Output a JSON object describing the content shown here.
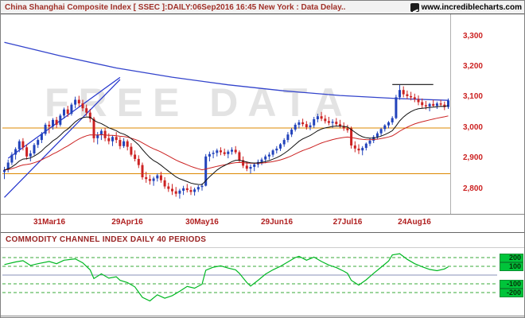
{
  "header": {
    "title": "China Shanghai Composite Index [ SSEC ]:DAILY:06Sep2016 16:45 New York : Data Delay..",
    "site": "www.incrediblecharts.com"
  },
  "chart_data": {
    "type": "candlestick",
    "title": "China Shanghai Composite Index [ SSEC ] DAILY",
    "watermark": "FREE DATA",
    "price_panel": {
      "ylim": [
        2718,
        3372
      ],
      "y_ticks": [
        3300,
        3200,
        3100,
        3000,
        2900,
        2800
      ],
      "x_ticks": [
        {
          "label": "31Mar16",
          "index": 12
        },
        {
          "label": "29Apr16",
          "index": 33
        },
        {
          "label": "30May16",
          "index": 53
        },
        {
          "label": "29Jun16",
          "index": 73
        },
        {
          "label": "27Jul16",
          "index": 92
        },
        {
          "label": "24Aug16",
          "index": 110
        }
      ],
      "support_resistance": [
        {
          "value": 3000,
          "color": "#dd8800"
        },
        {
          "value": 2850,
          "color": "#dd8800"
        }
      ],
      "trendlines": [
        {
          "from": [
            1,
            2900
          ],
          "to": [
            31,
            3165
          ],
          "color": "#2233cc"
        },
        {
          "from": [
            0,
            2772
          ],
          "to": [
            31,
            3158
          ],
          "color": "#2233cc"
        },
        {
          "from": [
            104,
            3142
          ],
          "to": [
            115,
            3142
          ],
          "color": "#111111"
        }
      ],
      "long_ma_points": [
        [
          0,
          3280
        ],
        [
          15,
          3236
        ],
        [
          30,
          3196
        ],
        [
          45,
          3166
        ],
        [
          60,
          3141
        ],
        [
          75,
          3121
        ],
        [
          90,
          3106
        ],
        [
          105,
          3096
        ],
        [
          119,
          3090
        ]
      ],
      "ma_fast_period": 13,
      "ma_slow_period": 34,
      "colors": {
        "up": "#2243bb",
        "down": "#cc2222",
        "ma_fast": "#111111",
        "ma_slow": "#cc2222",
        "long_ma": "#3344cc"
      }
    },
    "candles": [
      [
        2855,
        2872,
        2832,
        2862
      ],
      [
        2862,
        2896,
        2854,
        2886
      ],
      [
        2886,
        2920,
        2878,
        2912
      ],
      [
        2912,
        2936,
        2896,
        2930
      ],
      [
        2930,
        2962,
        2920,
        2956
      ],
      [
        2956,
        2966,
        2926,
        2936
      ],
      [
        2936,
        2946,
        2896,
        2906
      ],
      [
        2906,
        2926,
        2890,
        2916
      ],
      [
        2916,
        2950,
        2910,
        2944
      ],
      [
        2944,
        2966,
        2934,
        2960
      ],
      [
        2960,
        2986,
        2950,
        2980
      ],
      [
        2980,
        3016,
        2974,
        3010
      ],
      [
        3010,
        3022,
        2982,
        3004
      ],
      [
        3004,
        3032,
        2994,
        3026
      ],
      [
        3026,
        3036,
        3000,
        3010
      ],
      [
        3010,
        3046,
        3004,
        3040
      ],
      [
        3040,
        3066,
        3030,
        3060
      ],
      [
        3060,
        3072,
        3036,
        3046
      ],
      [
        3046,
        3082,
        3040,
        3076
      ],
      [
        3076,
        3102,
        3064,
        3092
      ],
      [
        3092,
        3105,
        3070,
        3080
      ],
      [
        3080,
        3092,
        3054,
        3064
      ],
      [
        3064,
        3076,
        3040,
        3050
      ],
      [
        3050,
        3062,
        3018,
        3030
      ],
      [
        3030,
        3036,
        2952,
        2966
      ],
      [
        2966,
        2986,
        2946,
        2976
      ],
      [
        2976,
        2996,
        2960,
        2990
      ],
      [
        2990,
        3000,
        2956,
        2966
      ],
      [
        2966,
        2982,
        2946,
        2956
      ],
      [
        2956,
        2976,
        2940,
        2970
      ],
      [
        2970,
        2986,
        2950,
        2960
      ],
      [
        2960,
        2970,
        2930,
        2940
      ],
      [
        2940,
        2966,
        2934,
        2956
      ],
      [
        2956,
        2962,
        2926,
        2938
      ],
      [
        2938,
        2950,
        2906,
        2912
      ],
      [
        2912,
        2926,
        2890,
        2898
      ],
      [
        2898,
        2910,
        2868,
        2878
      ],
      [
        2878,
        2886,
        2830,
        2838
      ],
      [
        2838,
        2856,
        2820,
        2832
      ],
      [
        2832,
        2846,
        2814,
        2826
      ],
      [
        2826,
        2840,
        2810,
        2834
      ],
      [
        2834,
        2850,
        2824,
        2844
      ],
      [
        2844,
        2856,
        2820,
        2828
      ],
      [
        2828,
        2838,
        2800,
        2808
      ],
      [
        2808,
        2820,
        2790,
        2800
      ],
      [
        2800,
        2816,
        2780,
        2792
      ],
      [
        2792,
        2806,
        2774,
        2784
      ],
      [
        2784,
        2800,
        2768,
        2794
      ],
      [
        2794,
        2810,
        2780,
        2802
      ],
      [
        2802,
        2816,
        2788,
        2796
      ],
      [
        2796,
        2808,
        2780,
        2790
      ],
      [
        2790,
        2804,
        2778,
        2798
      ],
      [
        2798,
        2812,
        2790,
        2806
      ],
      [
        2806,
        2818,
        2794,
        2810
      ],
      [
        2810,
        2914,
        2808,
        2906
      ],
      [
        2906,
        2922,
        2890,
        2914
      ],
      [
        2914,
        2926,
        2900,
        2918
      ],
      [
        2918,
        2932,
        2906,
        2926
      ],
      [
        2926,
        2936,
        2910,
        2920
      ],
      [
        2920,
        2932,
        2908,
        2914
      ],
      [
        2914,
        2928,
        2900,
        2922
      ],
      [
        2922,
        2936,
        2912,
        2928
      ],
      [
        2928,
        2940,
        2914,
        2920
      ],
      [
        2920,
        2926,
        2888,
        2894
      ],
      [
        2894,
        2906,
        2868,
        2876
      ],
      [
        2876,
        2890,
        2858,
        2866
      ],
      [
        2866,
        2880,
        2850,
        2872
      ],
      [
        2872,
        2886,
        2858,
        2880
      ],
      [
        2880,
        2896,
        2870,
        2888
      ],
      [
        2888,
        2902,
        2878,
        2896
      ],
      [
        2896,
        2912,
        2884,
        2906
      ],
      [
        2906,
        2920,
        2896,
        2912
      ],
      [
        2912,
        2930,
        2904,
        2926
      ],
      [
        2926,
        2940,
        2916,
        2932
      ],
      [
        2932,
        2950,
        2924,
        2946
      ],
      [
        2946,
        2966,
        2938,
        2960
      ],
      [
        2960,
        2986,
        2952,
        2978
      ],
      [
        2978,
        3000,
        2970,
        2994
      ],
      [
        2994,
        3016,
        2988,
        3010
      ],
      [
        3010,
        3026,
        2998,
        3018
      ],
      [
        3018,
        3030,
        3004,
        3012
      ],
      [
        3012,
        3022,
        2994,
        3002
      ],
      [
        3002,
        3018,
        2992,
        3008
      ],
      [
        3008,
        3036,
        3000,
        3028
      ],
      [
        3028,
        3046,
        3018,
        3038
      ],
      [
        3038,
        3052,
        3022,
        3030
      ],
      [
        3030,
        3042,
        3014,
        3022
      ],
      [
        3022,
        3036,
        3008,
        3016
      ],
      [
        3016,
        3028,
        3000,
        3020
      ],
      [
        3020,
        3032,
        3004,
        3012
      ],
      [
        3012,
        3026,
        2998,
        3006
      ],
      [
        3006,
        3018,
        2990,
        2998
      ],
      [
        2998,
        3010,
        2984,
        2992
      ],
      [
        2998,
        3004,
        2932,
        2942
      ],
      [
        2942,
        2956,
        2920,
        2932
      ],
      [
        2932,
        2946,
        2914,
        2926
      ],
      [
        2926,
        2940,
        2910,
        2934
      ],
      [
        2934,
        2952,
        2926,
        2948
      ],
      [
        2948,
        2966,
        2940,
        2958
      ],
      [
        2958,
        2976,
        2950,
        2970
      ],
      [
        2970,
        2988,
        2962,
        2982
      ],
      [
        2982,
        3000,
        2974,
        2996
      ],
      [
        2996,
        3012,
        2988,
        3008
      ],
      [
        3008,
        3022,
        2998,
        3018
      ],
      [
        3018,
        3038,
        3010,
        3032
      ],
      [
        3032,
        3108,
        3028,
        3100
      ],
      [
        3100,
        3140,
        3092,
        3124
      ],
      [
        3124,
        3136,
        3100,
        3110
      ],
      [
        3110,
        3122,
        3094,
        3104
      ],
      [
        3104,
        3118,
        3090,
        3100
      ],
      [
        3100,
        3112,
        3084,
        3094
      ],
      [
        3094,
        3106,
        3074,
        3084
      ],
      [
        3084,
        3096,
        3064,
        3074
      ],
      [
        3074,
        3088,
        3060,
        3070
      ],
      [
        3070,
        3082,
        3054,
        3078
      ],
      [
        3078,
        3092,
        3068,
        3072
      ],
      [
        3072,
        3086,
        3062,
        3080
      ],
      [
        3080,
        3092,
        3070,
        3076
      ],
      [
        3076,
        3086,
        3058,
        3068
      ],
      [
        3068,
        3096,
        3062,
        3090
      ]
    ],
    "cci_panel": {
      "title": "COMMODITY CHANNEL INDEX DAILY 40 PERIODS",
      "period": 40,
      "y_ticks": [
        200,
        100,
        -100,
        -200
      ],
      "dashed_levels": [
        200,
        100,
        -100,
        -200
      ],
      "zero_level": 0,
      "line_color": "#00b822",
      "points": [
        [
          0,
          120
        ],
        [
          3,
          150
        ],
        [
          5,
          165
        ],
        [
          7,
          110
        ],
        [
          9,
          130
        ],
        [
          12,
          155
        ],
        [
          14,
          130
        ],
        [
          16,
          170
        ],
        [
          19,
          185
        ],
        [
          21,
          140
        ],
        [
          23,
          60
        ],
        [
          24,
          -40
        ],
        [
          26,
          15
        ],
        [
          28,
          -35
        ],
        [
          30,
          -20
        ],
        [
          31,
          -60
        ],
        [
          33,
          -85
        ],
        [
          35,
          -135
        ],
        [
          37,
          -255
        ],
        [
          39,
          -295
        ],
        [
          41,
          -225
        ],
        [
          43,
          -265
        ],
        [
          45,
          -235
        ],
        [
          47,
          -185
        ],
        [
          49,
          -130
        ],
        [
          51,
          -150
        ],
        [
          53,
          -105
        ],
        [
          54,
          55
        ],
        [
          56,
          90
        ],
        [
          58,
          105
        ],
        [
          60,
          80
        ],
        [
          62,
          60
        ],
        [
          63,
          20
        ],
        [
          65,
          -85
        ],
        [
          66,
          -125
        ],
        [
          68,
          -60
        ],
        [
          70,
          10
        ],
        [
          72,
          60
        ],
        [
          74,
          100
        ],
        [
          76,
          150
        ],
        [
          78,
          200
        ],
        [
          79,
          215
        ],
        [
          81,
          170
        ],
        [
          83,
          205
        ],
        [
          85,
          155
        ],
        [
          87,
          115
        ],
        [
          89,
          85
        ],
        [
          91,
          45
        ],
        [
          92,
          20
        ],
        [
          93,
          -60
        ],
        [
          95,
          -115
        ],
        [
          97,
          -55
        ],
        [
          99,
          20
        ],
        [
          101,
          90
        ],
        [
          103,
          160
        ],
        [
          104,
          230
        ],
        [
          106,
          245
        ],
        [
          108,
          180
        ],
        [
          110,
          130
        ],
        [
          112,
          95
        ],
        [
          114,
          65
        ],
        [
          116,
          50
        ],
        [
          118,
          70
        ],
        [
          119,
          95
        ]
      ]
    }
  }
}
